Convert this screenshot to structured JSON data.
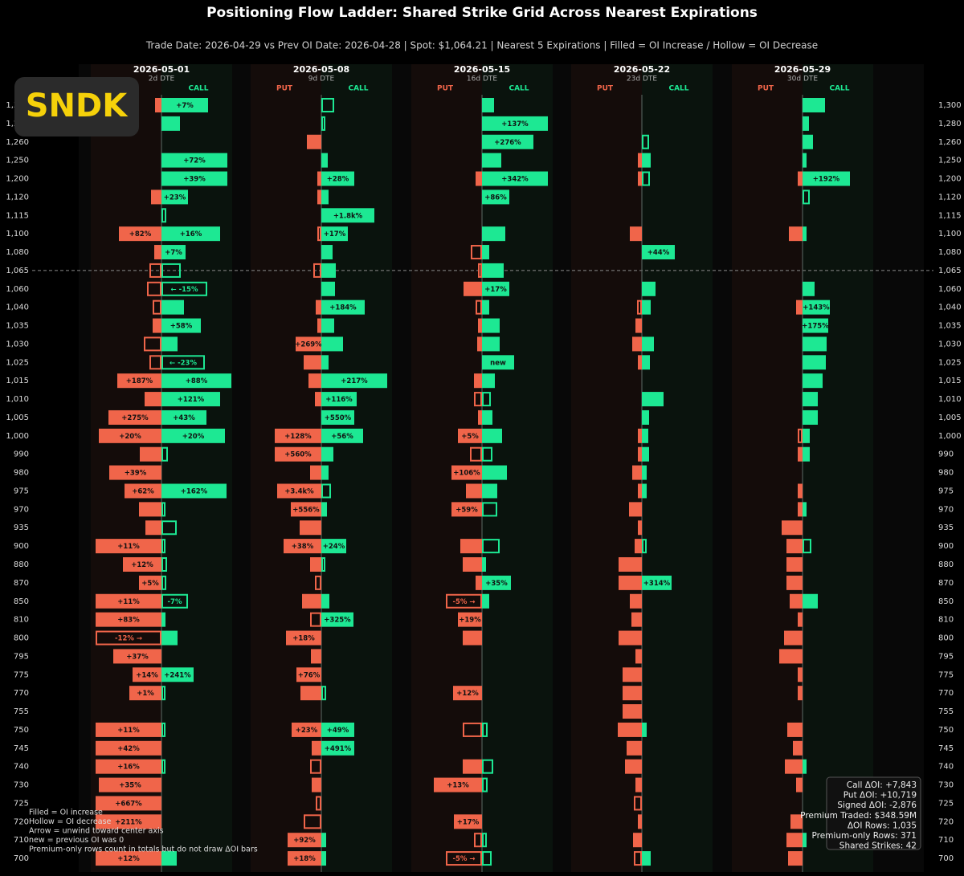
{
  "logo": "SNDK",
  "chart_data": {
    "type": "ladder",
    "title": "Positioning Flow Ladder: Shared Strike Grid Across Nearest Expirations",
    "subtitle": "Trade Date: 2026-04-29 vs Prev OI Date: 2026-04-28  |  Spot: $1,064.21  |  Nearest 5 Expirations  |  Filled = OI Increase / Hollow = OI Decrease",
    "put_header": "PUT",
    "call_header": "CALL",
    "put_color": "#f0654a",
    "call_color": "#1de893",
    "spot_strike": "1,065",
    "strikes": [
      "1,300",
      "1,280",
      "1,260",
      "1,250",
      "1,200",
      "1,120",
      "1,115",
      "1,100",
      "1,080",
      "1,065",
      "1,060",
      "1,040",
      "1,035",
      "1,030",
      "1,025",
      "1,015",
      "1,010",
      "1,005",
      "1,000",
      "990",
      "980",
      "975",
      "970",
      "935",
      "900",
      "880",
      "870",
      "850",
      "810",
      "800",
      "795",
      "775",
      "770",
      "755",
      "750",
      "745",
      "740",
      "730",
      "725",
      "720",
      "710",
      "700"
    ],
    "expirations": [
      {
        "name": "2026-05-01",
        "dte": "2d DTE",
        "put": [
          8,
          0,
          0,
          0,
          0,
          13,
          0,
          53,
          9,
          -15,
          -18,
          -11,
          11,
          -22,
          -15,
          55,
          21,
          66,
          78,
          27,
          65,
          46,
          28,
          20,
          82,
          48,
          28,
          82,
          82,
          -82,
          60,
          36,
          40,
          0,
          82,
          82,
          82,
          78,
          82,
          82,
          0,
          82
        ],
        "call": [
          58,
          23,
          0,
          82,
          82,
          33,
          -6,
          73,
          30,
          -24,
          -57,
          28,
          49,
          20,
          -54,
          87,
          73,
          56,
          79,
          -8,
          0,
          81,
          -5,
          -19,
          -5,
          -7,
          -6,
          -33,
          5,
          20,
          0,
          40,
          -5,
          0,
          -5,
          0,
          -5,
          0,
          0,
          0,
          0,
          19
        ],
        "put_labels": [
          null,
          null,
          null,
          null,
          null,
          null,
          null,
          "+82%",
          null,
          null,
          null,
          null,
          null,
          null,
          null,
          "+187%",
          null,
          "+275%",
          "+20%",
          null,
          "+39%",
          "+62%",
          null,
          null,
          "+11%",
          "+12%",
          "+5%",
          "+11%",
          "+83%",
          "-12%   →",
          "+37%",
          "+14%",
          "+1%",
          null,
          "+11%",
          "+42%",
          "+16%",
          "+35%",
          "+667%",
          "+211%",
          null,
          "+12%"
        ],
        "call_labels": [
          "+7%",
          null,
          null,
          "+72%",
          "+39%",
          "+23%",
          null,
          "+16%",
          "+7%",
          null,
          "← -15%",
          null,
          "+58%",
          null,
          "← -23%",
          "+88%",
          "+121%",
          "+43%",
          "+20%",
          null,
          null,
          "+162%",
          null,
          null,
          null,
          null,
          null,
          "-7%",
          null,
          null,
          null,
          "+241%",
          null,
          null,
          null,
          null,
          null,
          null,
          null,
          null,
          null,
          null
        ]
      },
      {
        "name": "2026-05-08",
        "dte": "9d DTE",
        "put": [
          0,
          0,
          18,
          0,
          5,
          5,
          0,
          -5,
          0,
          -10,
          0,
          7,
          5,
          32,
          22,
          16,
          8,
          0,
          58,
          58,
          14,
          55,
          38,
          27,
          47,
          14,
          -8,
          24,
          -14,
          44,
          13,
          31,
          26,
          0,
          37,
          12,
          -14,
          12,
          -7,
          -22,
          42,
          42
        ],
        "call": [
          -16,
          -5,
          0,
          8,
          41,
          9,
          66,
          33,
          14,
          18,
          17,
          54,
          16,
          27,
          9,
          82,
          44,
          41,
          52,
          15,
          9,
          -12,
          7,
          0,
          31,
          -5,
          0,
          10,
          40,
          0,
          0,
          0,
          -6,
          0,
          41,
          41,
          0,
          0,
          0,
          0,
          6,
          6
        ],
        "put_labels": [
          null,
          null,
          null,
          null,
          null,
          null,
          null,
          null,
          null,
          null,
          null,
          null,
          null,
          "+269%",
          null,
          null,
          null,
          null,
          "+128%",
          "+560%",
          null,
          "+3.4k%",
          "+556%",
          null,
          "+38%",
          null,
          null,
          null,
          null,
          "+18%",
          null,
          "+76%",
          null,
          null,
          "+23%",
          null,
          null,
          null,
          null,
          null,
          "+92%",
          "+18%"
        ],
        "call_labels": [
          null,
          null,
          null,
          null,
          "+28%",
          null,
          "+1.8k%",
          "+17%",
          null,
          null,
          null,
          "+184%",
          null,
          null,
          null,
          "+217%",
          "+116%",
          "+550%",
          "+56%",
          null,
          null,
          null,
          null,
          null,
          "+24%",
          null,
          null,
          null,
          "+325%",
          null,
          null,
          null,
          null,
          null,
          "+49%",
          "+491%",
          null,
          null,
          null,
          null,
          null,
          null
        ]
      },
      {
        "name": "2026-05-15",
        "dte": "16d DTE",
        "put": [
          0,
          0,
          0,
          0,
          8,
          0,
          0,
          0,
          -14,
          -5,
          23,
          -8,
          5,
          6,
          0,
          10,
          -10,
          5,
          30,
          -15,
          38,
          20,
          38,
          0,
          27,
          24,
          8,
          -45,
          30,
          24,
          0,
          0,
          36,
          0,
          -24,
          0,
          24,
          60,
          0,
          35,
          -10,
          -45
        ],
        "call": [
          15,
          82,
          64,
          24,
          82,
          34,
          0,
          29,
          9,
          27,
          34,
          9,
          22,
          22,
          40,
          16,
          -11,
          13,
          25,
          -13,
          31,
          19,
          -19,
          0,
          -22,
          5,
          36,
          9,
          0,
          0,
          0,
          0,
          0,
          0,
          -7,
          0,
          -14,
          -7,
          0,
          0,
          -6,
          -12
        ],
        "put_labels": [
          null,
          null,
          null,
          null,
          null,
          null,
          null,
          null,
          null,
          null,
          null,
          null,
          null,
          null,
          null,
          null,
          null,
          null,
          "+5%",
          null,
          "+106%",
          null,
          "+59%",
          null,
          null,
          null,
          null,
          "-5% →",
          "+19%",
          null,
          null,
          null,
          "+12%",
          null,
          null,
          null,
          null,
          "+13%",
          null,
          "+17%",
          null,
          "-5% →"
        ],
        "call_labels": [
          null,
          "+137%",
          "+276%",
          null,
          "+342%",
          "+86%",
          null,
          null,
          null,
          null,
          "+17%",
          null,
          null,
          null,
          "new",
          null,
          null,
          null,
          null,
          null,
          null,
          null,
          null,
          null,
          null,
          null,
          "+35%",
          null,
          null,
          null,
          null,
          null,
          null,
          null,
          null,
          null,
          null,
          null,
          null,
          null,
          null,
          null
        ]
      },
      {
        "name": "2026-05-22",
        "dte": "23d DTE",
        "put": [
          0,
          0,
          0,
          5,
          5,
          0,
          0,
          15,
          0,
          0,
          0,
          -6,
          8,
          12,
          5,
          0,
          0,
          0,
          5,
          5,
          12,
          5,
          16,
          5,
          9,
          29,
          29,
          15,
          13,
          29,
          8,
          24,
          24,
          24,
          30,
          19,
          21,
          8,
          -10,
          5,
          11,
          -10
        ],
        "call": [
          0,
          0,
          -9,
          11,
          -10,
          0,
          0,
          0,
          41,
          0,
          17,
          11,
          0,
          15,
          10,
          0,
          27,
          9,
          8,
          9,
          6,
          6,
          0,
          0,
          -6,
          0,
          37,
          0,
          0,
          0,
          0,
          0,
          0,
          0,
          6,
          0,
          0,
          0,
          0,
          0,
          0,
          11
        ],
        "call_labels": [
          null,
          null,
          null,
          null,
          null,
          null,
          null,
          null,
          "+44%",
          null,
          null,
          null,
          null,
          null,
          null,
          null,
          null,
          null,
          null,
          null,
          null,
          null,
          null,
          null,
          null,
          null,
          "+314%",
          null,
          null,
          null,
          null,
          null,
          null,
          null,
          null,
          null,
          null,
          null,
          null,
          null,
          null,
          null
        ]
      },
      {
        "name": "2026-05-29",
        "dte": "30d DTE",
        "put": [
          0,
          0,
          0,
          0,
          6,
          0,
          0,
          17,
          0,
          0,
          0,
          8,
          0,
          0,
          0,
          0,
          0,
          0,
          -6,
          6,
          0,
          6,
          6,
          26,
          20,
          20,
          20,
          16,
          6,
          23,
          29,
          6,
          6,
          0,
          19,
          12,
          22,
          8,
          0,
          15,
          20,
          18
        ],
        "call": [
          28,
          8,
          13,
          5,
          59,
          -9,
          0,
          5,
          0,
          0,
          15,
          34,
          32,
          30,
          29,
          25,
          19,
          19,
          9,
          9,
          0,
          0,
          5,
          0,
          -11,
          0,
          0,
          19,
          0,
          0,
          0,
          0,
          0,
          0,
          0,
          0,
          5,
          0,
          0,
          0,
          5,
          0
        ],
        "call_labels": [
          null,
          null,
          null,
          null,
          "+192%",
          null,
          null,
          null,
          null,
          null,
          null,
          "+143%",
          "+175%",
          null,
          null,
          null,
          null,
          null,
          null,
          null,
          null,
          null,
          null,
          null,
          null,
          null,
          null,
          null,
          null,
          null,
          null,
          null,
          null,
          null,
          null,
          null,
          null,
          null,
          null,
          null,
          null,
          null
        ]
      }
    ],
    "notes": [
      "Filled  = OI increase",
      "Hollow  = OI decrease",
      "Arrow   = unwind toward center axis",
      "new     = previous OI was 0",
      "Premium-only rows count in totals but do not draw ΔOI bars"
    ],
    "summary": [
      "Call ΔOI: +7,843",
      "Put ΔOI: +10,719",
      "Signed ΔOI: -2,876",
      "Premium Traded: $348.59M",
      "ΔOI Rows: 1,035",
      "Premium-only Rows: 371",
      "Shared Strikes: 42"
    ]
  }
}
